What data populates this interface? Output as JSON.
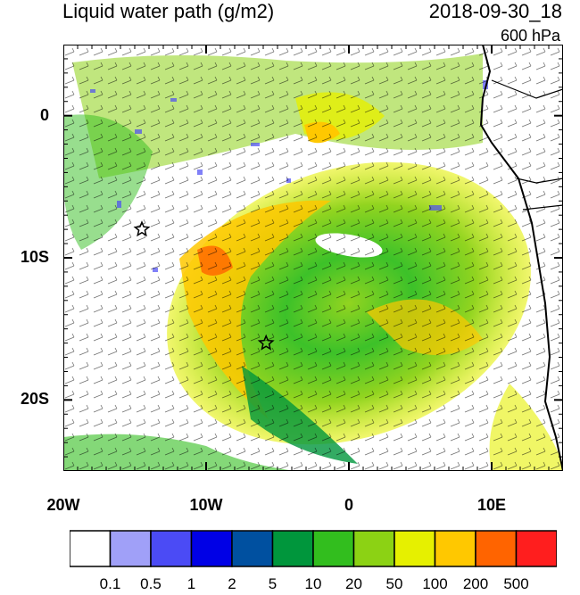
{
  "header": {
    "title": "Liquid water path (g/m2)",
    "datetime": "2018-09-30_18",
    "level": "600 hPa"
  },
  "map": {
    "lon_range": [
      -20,
      15
    ],
    "lat_range": [
      -25,
      5
    ],
    "lat_ticks": [
      {
        "label": "0",
        "value": 0
      },
      {
        "label": "10S",
        "value": -10
      },
      {
        "label": "20S",
        "value": -20
      }
    ],
    "lon_ticks": [
      {
        "label": "20W",
        "value": -20
      },
      {
        "label": "10W",
        "value": -10
      },
      {
        "label": "0",
        "value": 0
      },
      {
        "label": "10E",
        "value": 10
      }
    ],
    "markers": [
      {
        "name": "star-marker-1",
        "lon": -14.5,
        "lat": -8
      },
      {
        "name": "star-marker-2",
        "lon": -5.8,
        "lat": -16
      }
    ]
  },
  "colorbar": {
    "labels": [
      "0.1",
      "0.5",
      "1",
      "2",
      "5",
      "10",
      "20",
      "50",
      "100",
      "200",
      "500"
    ],
    "colors": [
      "#ffffff",
      "#a0a0f8",
      "#4b4bf5",
      "#0000e6",
      "#0050a0",
      "#00963c",
      "#32be1e",
      "#8cd214",
      "#e6f000",
      "#ffc800",
      "#ff6400",
      "#ff1e1e"
    ]
  }
}
